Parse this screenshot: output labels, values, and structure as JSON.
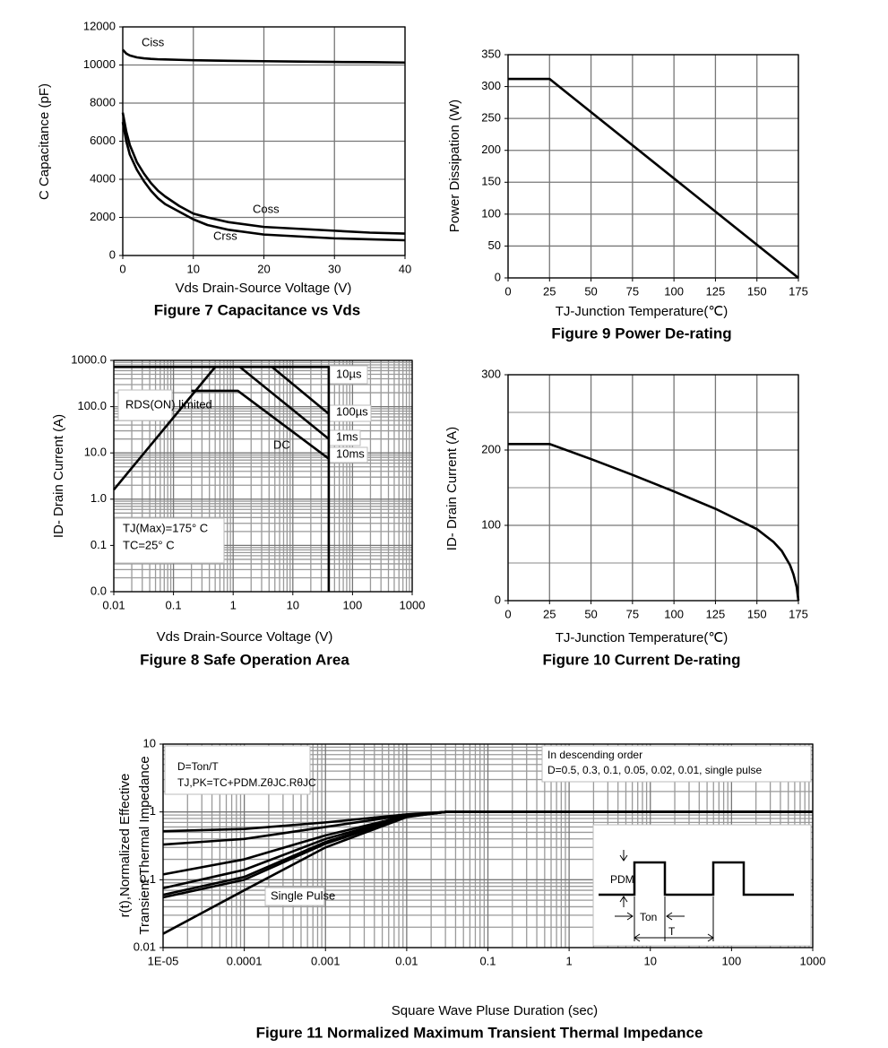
{
  "chart_data": [
    {
      "type": "line",
      "title": "Figure 7 Capacitance vs Vds",
      "x_label": "Vds Drain-Source Voltage (V)",
      "y_label": "C Capacitance (pF)",
      "x": [
        0,
        0.5,
        1,
        2,
        3,
        4,
        5,
        6,
        8,
        10,
        12,
        15,
        20,
        25,
        30,
        35,
        40
      ],
      "series": [
        {
          "name": "Ciss",
          "color": "#000000",
          "values": [
            10800,
            10600,
            10500,
            10400,
            10350,
            10320,
            10300,
            10290,
            10270,
            10250,
            10240,
            10220,
            10200,
            10180,
            10160,
            10150,
            10130
          ]
        },
        {
          "name": "Coss",
          "color": "#000000",
          "values": [
            7500,
            6500,
            5800,
            4900,
            4300,
            3800,
            3400,
            3100,
            2600,
            2200,
            2000,
            1750,
            1500,
            1400,
            1300,
            1200,
            1150
          ]
        },
        {
          "name": "Crss",
          "color": "#000000",
          "values": [
            7000,
            6000,
            5300,
            4500,
            3900,
            3400,
            3000,
            2700,
            2300,
            1900,
            1600,
            1350,
            1100,
            1000,
            900,
            850,
            800
          ]
        }
      ],
      "xlim": [
        0,
        40
      ],
      "xticks": [
        0,
        10,
        20,
        30,
        40
      ],
      "ylim": [
        0,
        12000
      ],
      "yticks": [
        0,
        2000,
        4000,
        6000,
        8000,
        10000,
        12000
      ],
      "grid": true
    },
    {
      "type": "line",
      "title": "Figure 9 Power De-rating",
      "x_label": "TJ-Junction Temperature(℃)",
      "y_label": "Power Dissipation (W)",
      "x": [
        0,
        25,
        175
      ],
      "series": [
        {
          "color": "#000000",
          "values": [
            312,
            312,
            0
          ]
        }
      ],
      "xlim": [
        0,
        175
      ],
      "xticks": [
        0,
        25,
        50,
        75,
        100,
        125,
        150,
        175
      ],
      "ylim": [
        0,
        350
      ],
      "yticks": [
        0,
        50,
        100,
        150,
        200,
        250,
        300,
        350
      ],
      "grid": true
    },
    {
      "type": "line",
      "title": "Figure 8 Safe Operation Area",
      "x_label": "Vds Drain-Source Voltage (V)",
      "y_label": "ID- Drain Current (A)",
      "xlog": true,
      "ylog": true,
      "series": [
        {
          "name": "RDS(ON) limited",
          "color": "#000000",
          "x": [
            0.01,
            0.5
          ],
          "values": [
            1.6,
            720
          ]
        },
        {
          "name": "10µs",
          "color": "#000000",
          "x": [
            0.01,
            0.5,
            40,
            40
          ],
          "values": [
            720,
            720,
            720,
            0.01
          ]
        },
        {
          "name": "100µs",
          "color": "#000000",
          "x": [
            4.5,
            40
          ],
          "values": [
            720,
            70
          ]
        },
        {
          "name": "1ms",
          "color": "#000000",
          "x": [
            1.3,
            40
          ],
          "values": [
            720,
            20
          ]
        },
        {
          "name": "DC",
          "color": "#000000",
          "x": [
            0.2,
            1.2,
            40
          ],
          "values": [
            220,
            220,
            7.5
          ]
        }
      ],
      "annotations": [
        "10ms",
        "TJ(Max)=175° C",
        "TC=25° C"
      ],
      "xlim": [
        0.01,
        1000
      ],
      "xticks": [
        0.01,
        0.1,
        1,
        10,
        100,
        1000
      ],
      "ylim": [
        0.01,
        1000
      ],
      "yticks": [
        {
          "value": 0.01,
          "label": "0.0"
        },
        0.1,
        {
          "value": 1,
          "label": "1.0"
        },
        {
          "value": 10,
          "label": "10.0"
        },
        {
          "value": 100,
          "label": "100.0"
        },
        {
          "value": 1000,
          "label": "1000.0"
        }
      ],
      "grid": true
    },
    {
      "type": "line",
      "title": "Figure 10 Current De-rating",
      "x_label": "TJ-Junction Temperature(℃)",
      "y_label": "ID- Drain Current (A)",
      "x": [
        0,
        25,
        50,
        75,
        100,
        125,
        150,
        160,
        165,
        170,
        172,
        174,
        175
      ],
      "series": [
        {
          "color": "#000000",
          "values": [
            208,
            208,
            188,
            167,
            145,
            122,
            95,
            78,
            66,
            47,
            35,
            18,
            0
          ]
        }
      ],
      "xlim": [
        0,
        175
      ],
      "xticks": [
        0,
        25,
        50,
        75,
        100,
        125,
        150,
        175
      ],
      "ylim": [
        0,
        300
      ],
      "yticks": [
        0,
        100,
        200,
        300
      ],
      "grid": true
    },
    {
      "type": "line",
      "title": "Figure 11 Normalized Maximum Transient Thermal Impedance",
      "x_label": "Square Wave Pluse Duration (sec)",
      "y_label": [
        "r(t),Normalized Effective",
        "Transient Thermal Impedance"
      ],
      "xlog": true,
      "ylog": true,
      "x": [
        1e-05,
        0.0001,
        0.001,
        0.01,
        0.03,
        0.1,
        1000
      ],
      "series": [
        {
          "color": "#000000",
          "values": [
            0.52,
            0.56,
            0.7,
            0.92,
            1,
            1,
            1
          ]
        },
        {
          "color": "#000000",
          "values": [
            0.33,
            0.4,
            0.6,
            0.9,
            1,
            1,
            1
          ]
        },
        {
          "color": "#000000",
          "values": [
            0.12,
            0.2,
            0.45,
            0.88,
            1,
            1,
            1
          ]
        },
        {
          "color": "#000000",
          "values": [
            0.075,
            0.14,
            0.4,
            0.86,
            1,
            1,
            1
          ]
        },
        {
          "color": "#000000",
          "values": [
            0.06,
            0.11,
            0.36,
            0.85,
            1,
            1,
            1
          ]
        },
        {
          "color": "#000000",
          "values": [
            0.055,
            0.1,
            0.34,
            0.85,
            1,
            1,
            1
          ]
        },
        {
          "name": "Single Pulse",
          "color": "#000000",
          "values": [
            0.016,
            0.07,
            0.3,
            0.84,
            1,
            1,
            1
          ]
        }
      ],
      "annotations": [
        "D=Ton/T",
        "TJ,PK=TC+PDM.ZθJC.RθJC",
        "In descending order",
        "D=0.5, 0.3, 0.1, 0.05, 0.02, 0.01, single pulse",
        "PDM",
        "Ton",
        "T"
      ],
      "xlim": [
        1e-05,
        1000
      ],
      "xticks": [
        {
          "value": 1e-05,
          "label": "1E-05"
        },
        0.0001,
        0.001,
        0.01,
        0.1,
        1,
        10,
        100,
        1000
      ],
      "ylim": [
        0.01,
        10
      ],
      "yticks": [
        0.01,
        0.1,
        1,
        10
      ],
      "grid": true
    }
  ]
}
